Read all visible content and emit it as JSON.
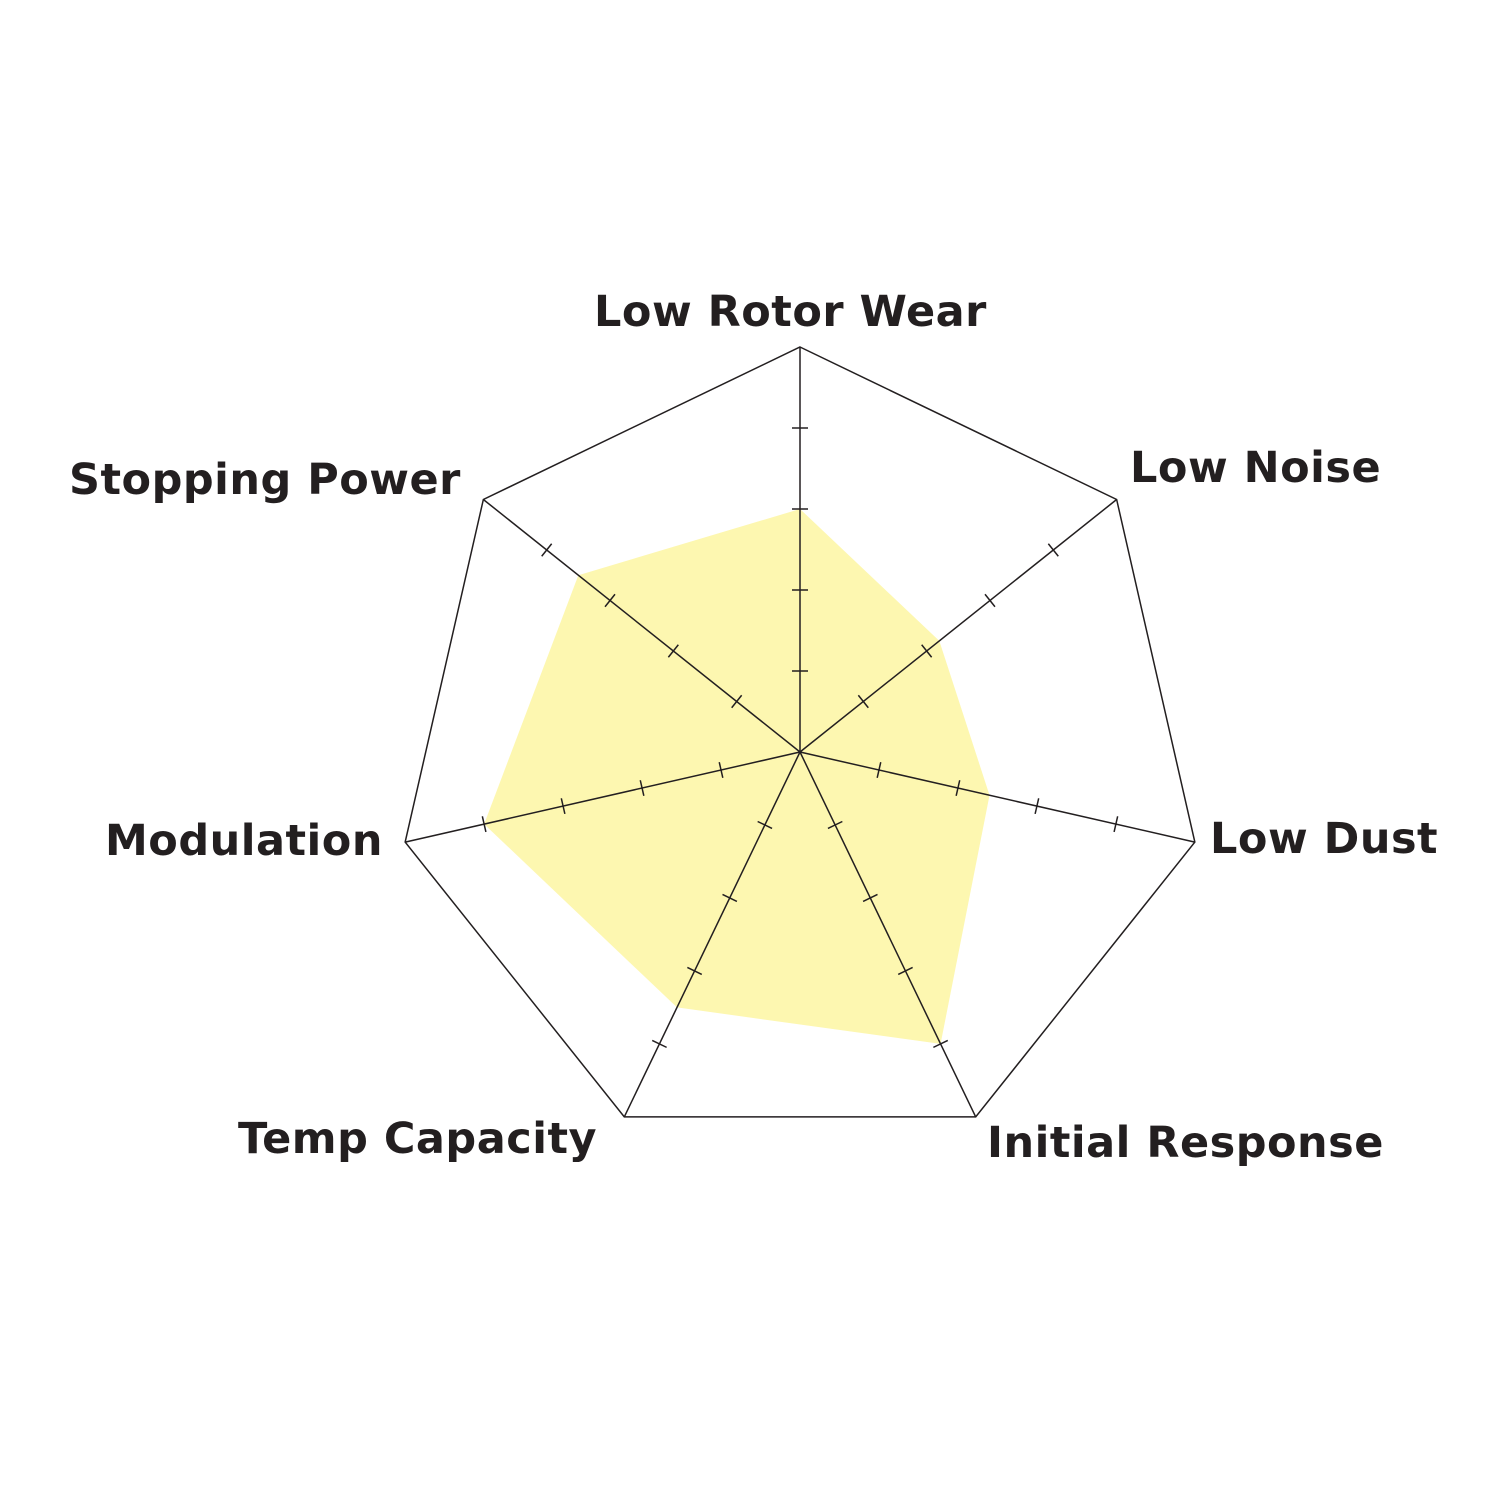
{
  "chart_data": {
    "type": "radar",
    "axes": [
      "Low Rotor Wear",
      "Low Noise",
      "Low Dust",
      "Initial Response",
      "Temp Capacity",
      "Modulation",
      "Stopping Power"
    ],
    "values": [
      3,
      2.2,
      2.4,
      4,
      3.5,
      4,
      3.5
    ],
    "range": [
      0,
      5
    ],
    "tick_count": 5,
    "fill_color": "#fdf7b0",
    "grid_color": "#231f20",
    "grid": true
  }
}
